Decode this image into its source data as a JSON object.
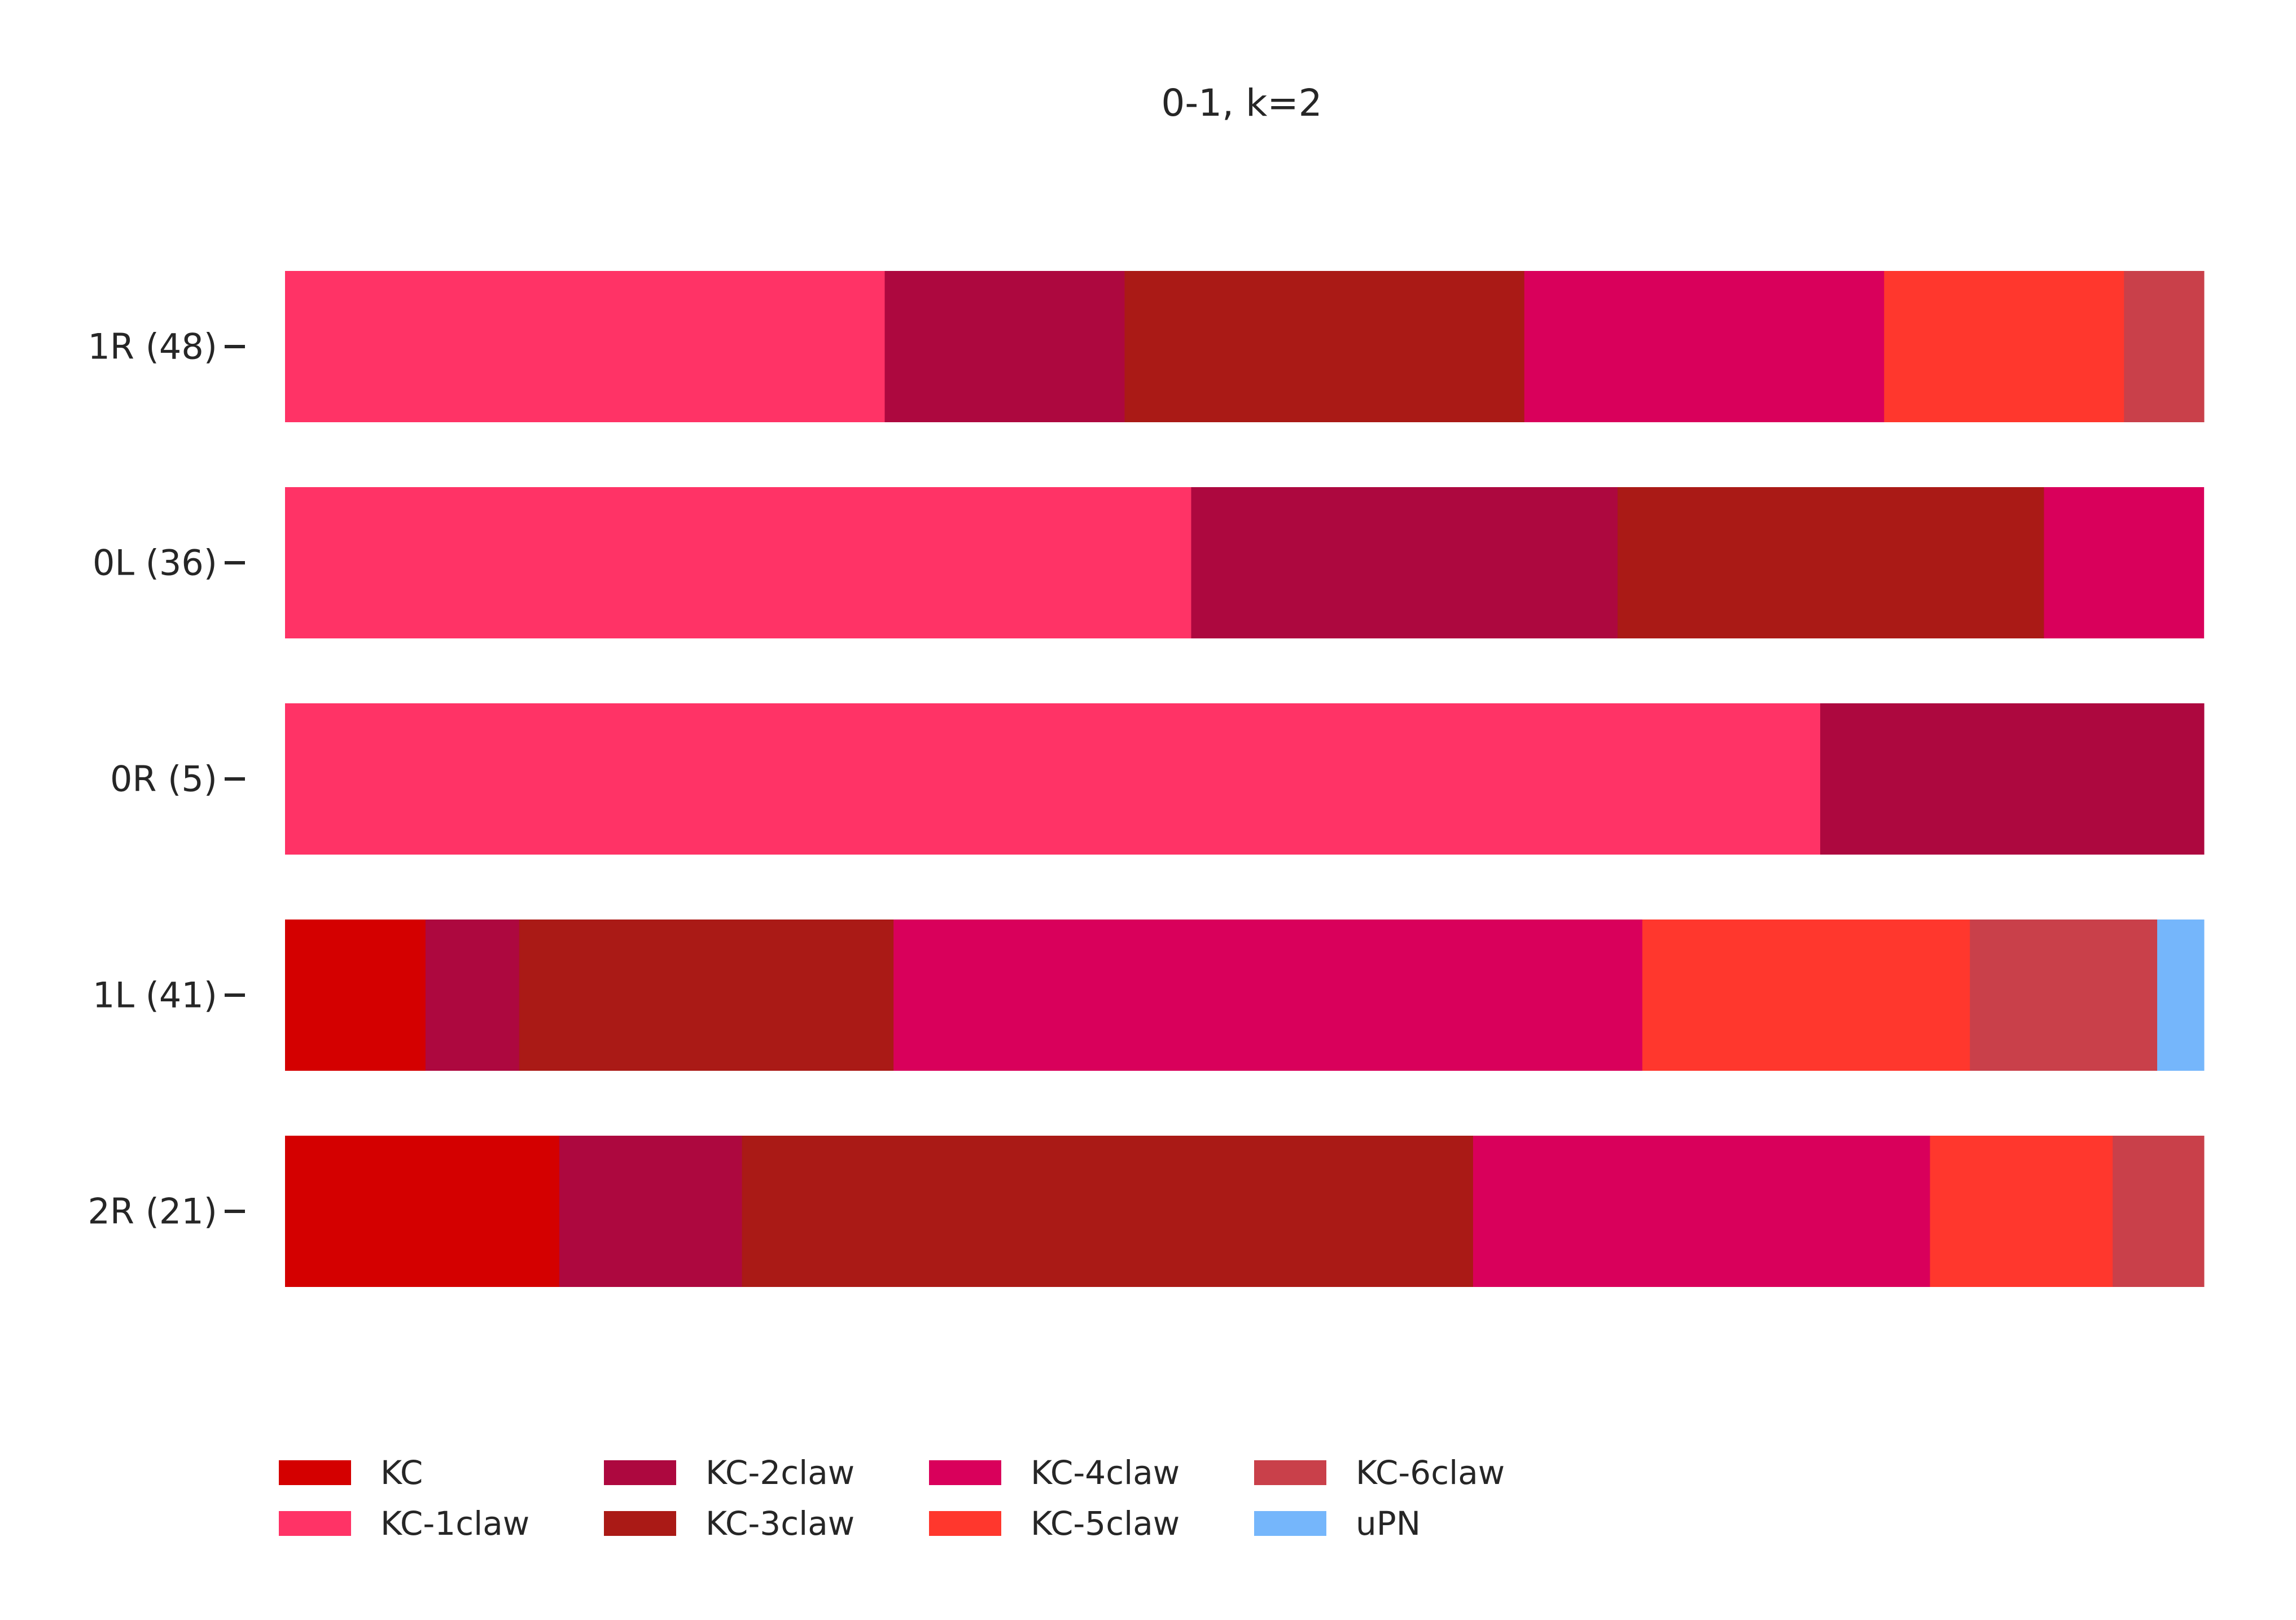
{
  "chart_data": {
    "type": "bar",
    "orientation": "horizontal",
    "stacked": true,
    "normalized": true,
    "title": "0-1, k=2",
    "xlabel": "",
    "ylabel": "",
    "xlim": [
      0,
      1
    ],
    "grid": false,
    "legend_position": "bottom",
    "categories": [
      "1R (48)",
      "0L (36)",
      "0R (5)",
      "1L (41)",
      "2R (21)"
    ],
    "series": [
      {
        "name": "KC",
        "color": "#d40000",
        "values": [
          0,
          0,
          0,
          0.0732,
          0.1429
        ]
      },
      {
        "name": "KC-1claw",
        "color": "#ff3366",
        "values": [
          0.3125,
          0.4722,
          0.8,
          0,
          0
        ]
      },
      {
        "name": "KC-2claw",
        "color": "#ad083f",
        "values": [
          0.125,
          0.2222,
          0.2,
          0.0488,
          0.0952
        ]
      },
      {
        "name": "KC-3claw",
        "color": "#aa1a16",
        "values": [
          0.2083,
          0.2222,
          0,
          0.1951,
          0.381
        ]
      },
      {
        "name": "KC-4claw",
        "color": "#d9005b",
        "values": [
          0.1875,
          0.0833,
          0,
          0.3902,
          0.2381
        ]
      },
      {
        "name": "KC-5claw",
        "color": "#ff372d",
        "values": [
          0.125,
          0,
          0,
          0.1707,
          0.0952
        ]
      },
      {
        "name": "KC-6claw",
        "color": "#c9404a",
        "values": [
          0.0417,
          0,
          0,
          0.0976,
          0.0476
        ]
      },
      {
        "name": "uPN",
        "color": "#75b6fb",
        "values": [
          0,
          0,
          0,
          0.0244,
          0
        ]
      }
    ]
  }
}
